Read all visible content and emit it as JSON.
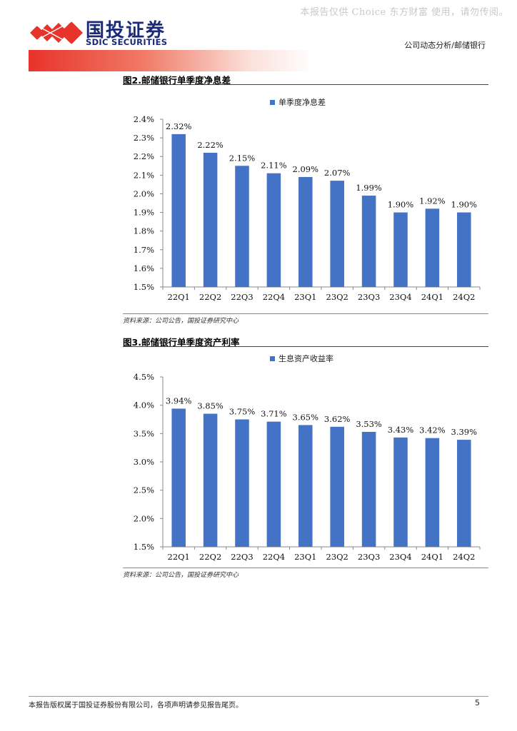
{
  "watermark": "本报告仅供 Choice 东方财富 使用，请勿传阅。",
  "brand": {
    "name_cn": "国投证券",
    "name_en": "SDIC SECURITIES",
    "accent": "#e8332a",
    "navy": "#1a2a78"
  },
  "header": {
    "right_text": "公司动态分析/邮储银行"
  },
  "figure2": {
    "title": "图2.邮储银行单季度净息差",
    "source": "资料来源：公司公告，国投证券研究中心"
  },
  "figure3": {
    "title": "图3.邮储银行单季度资产利率",
    "source": "资料来源：公司公告，国投证券研究中心"
  },
  "chart_data": [
    {
      "type": "bar",
      "title": "",
      "legend": "top-center",
      "series": [
        {
          "name": "单季度净息差",
          "color": "#4472c4",
          "values": [
            2.32,
            2.22,
            2.15,
            2.11,
            2.09,
            2.07,
            1.99,
            1.9,
            1.92,
            1.9
          ],
          "labels": [
            "2.32%",
            "2.22%",
            "2.15%",
            "2.11%",
            "2.09%",
            "2.07%",
            "1.99%",
            "1.90%",
            "1.92%",
            "1.90%"
          ]
        }
      ],
      "categories": [
        "22Q1",
        "22Q2",
        "22Q3",
        "22Q4",
        "23Q1",
        "23Q2",
        "23Q3",
        "23Q4",
        "24Q1",
        "24Q2"
      ],
      "ylim": [
        1.5,
        2.4
      ],
      "yticks": [
        "1.5%",
        "1.6%",
        "1.7%",
        "1.8%",
        "1.9%",
        "2.0%",
        "2.1%",
        "2.2%",
        "2.3%",
        "2.4%"
      ],
      "xlabel": "",
      "ylabel": "",
      "grid": false
    },
    {
      "type": "bar",
      "title": "",
      "legend": "top-center",
      "series": [
        {
          "name": "生息资产收益率",
          "color": "#4472c4",
          "values": [
            3.94,
            3.85,
            3.75,
            3.71,
            3.65,
            3.62,
            3.53,
            3.43,
            3.42,
            3.39
          ],
          "labels": [
            "3.94%",
            "3.85%",
            "3.75%",
            "3.71%",
            "3.65%",
            "3.62%",
            "3.53%",
            "3.43%",
            "3.42%",
            "3.39%"
          ]
        }
      ],
      "categories": [
        "22Q1",
        "22Q2",
        "22Q3",
        "22Q4",
        "23Q1",
        "23Q2",
        "23Q3",
        "23Q4",
        "24Q1",
        "24Q2"
      ],
      "ylim": [
        1.5,
        4.5
      ],
      "yticks": [
        "1.5%",
        "2.0%",
        "2.5%",
        "3.0%",
        "3.5%",
        "4.0%",
        "4.5%"
      ],
      "xlabel": "",
      "ylabel": "",
      "grid": false
    }
  ],
  "footer": {
    "disclaimer": "本报告版权属于国投证券股份有限公司，各项声明请参见报告尾页。",
    "page_number": "5"
  }
}
